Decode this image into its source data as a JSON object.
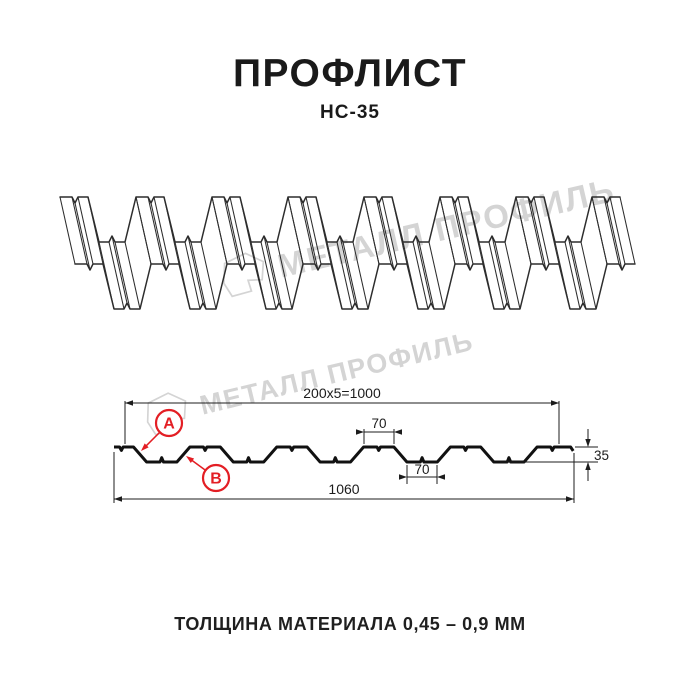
{
  "header": {
    "title": "ПРОФЛИСТ",
    "subtitle": "НС-35"
  },
  "watermark": {
    "text": "МЕТАЛЛ ПРОФИЛЬ"
  },
  "cross_section": {
    "dim_top_total": "200x5=1000",
    "dim_rib_top": "70",
    "dim_valley": "70",
    "dim_overall": "1060",
    "dim_height": "35",
    "marker_a": "A",
    "marker_b": "B",
    "profile_spec": {
      "period_mm": 200,
      "periods": 5,
      "rib_top_width_mm": 70,
      "valley_width_mm": 70,
      "height_mm": 35,
      "overall_width_mm": 1060
    }
  },
  "footer": {
    "thickness_note": "ТОЛЩИНА МАТЕРИАЛА 0,45 – 0,9 ММ"
  },
  "colors": {
    "line": "#1c1c1c",
    "sheet_line": "#2d2d2d",
    "red": "#e31e24",
    "watermark": "#d4d4d4"
  }
}
